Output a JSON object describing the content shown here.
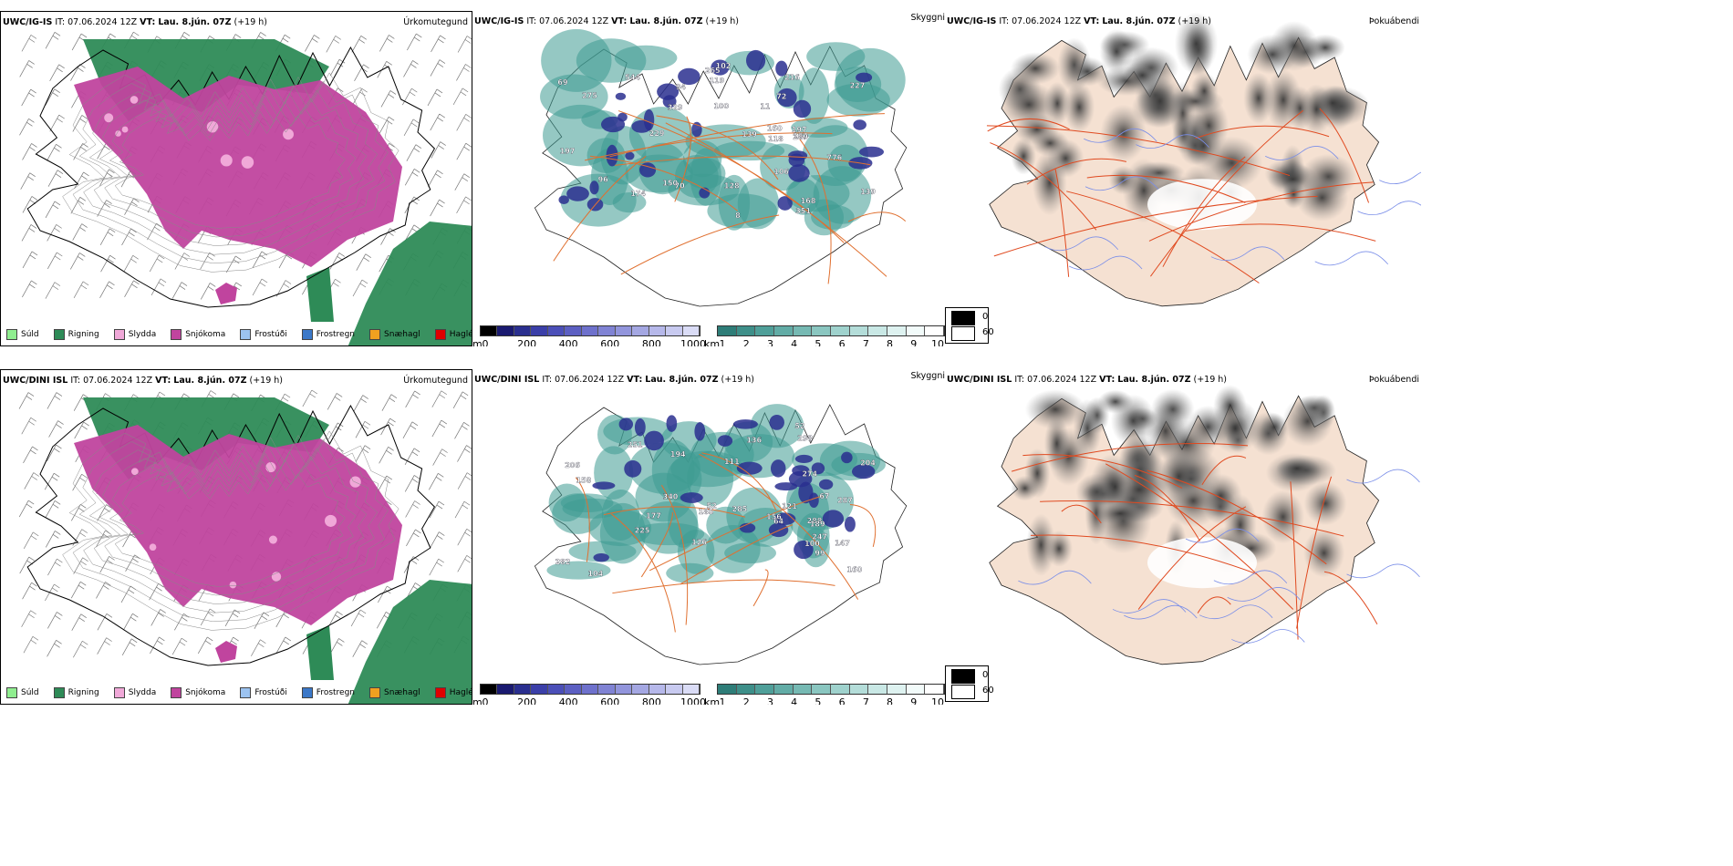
{
  "rows": [
    {
      "model": "UWC/IG-IS",
      "run": "IT: 07.06.2024 12Z",
      "vt_label": "VT:",
      "vt": "Lau. 8.jún. 07Z",
      "lead": "(+19 h)",
      "titles": [
        "Úrkomutegund",
        "Skyggni",
        "Þokuábendi"
      ]
    },
    {
      "model": "UWC/DINI ISL",
      "run": "IT: 07.06.2024 12Z",
      "vt_label": "VT:",
      "vt": "Lau. 8.jún. 07Z",
      "lead": "(+19 h)",
      "titles": [
        "Úrkomutegund",
        "Skyggni",
        "Þokuábendi"
      ]
    }
  ],
  "precip_legend": [
    {
      "label": "Súld",
      "color": "#90ee90"
    },
    {
      "label": "Rigning",
      "color": "#2e8b57"
    },
    {
      "label": "Slydda",
      "color": "#f0a8d8"
    },
    {
      "label": "Snjókoma",
      "color": "#c0449e"
    },
    {
      "label": "Frostúði",
      "color": "#9cc3f0"
    },
    {
      "label": "Frostregn",
      "color": "#3b78c8"
    },
    {
      "label": "Snæhagl",
      "color": "#f0a020"
    },
    {
      "label": "Haglél",
      "color": "#e00000"
    }
  ],
  "ceiling_bar": {
    "unit": "m",
    "ticks": [
      "0",
      "200",
      "400",
      "600",
      "800",
      "1000"
    ]
  },
  "visibility_bar": {
    "unit": "km",
    "ticks": [
      "1",
      "2",
      "3",
      "4",
      "5",
      "6",
      "7",
      "8",
      "9",
      "10"
    ]
  },
  "fog_legend": [
    "0",
    "60"
  ],
  "ceiling_labels_top": [
    "100",
    "168",
    "106",
    "544",
    "8",
    "96",
    "102",
    "72",
    "70",
    "160",
    "265",
    "216",
    "197",
    "174",
    "119",
    "139",
    "150",
    "69",
    "180",
    "275",
    "118",
    "351",
    "776",
    "289",
    "229",
    "227",
    "139",
    "197",
    "11",
    "128",
    "94",
    "329"
  ],
  "ceiling_labels_bottom": [
    "104",
    "99",
    "282",
    "251",
    "225",
    "204",
    "64",
    "52",
    "298",
    "288",
    "247",
    "100",
    "287",
    "285",
    "340",
    "177",
    "158",
    "189",
    "194",
    "121",
    "185",
    "126",
    "274",
    "156",
    "67",
    "136",
    "52",
    "147",
    "111",
    "206",
    "160"
  ],
  "colors": {
    "rain": "#2e8b57",
    "snow": "#c0449e",
    "sleet": "#f0a8d8",
    "drizzle": "#90ee90",
    "teal": "#3e9a92",
    "navy": "#2a2f8f",
    "road": "#e07030",
    "land": "#f5e1d2",
    "terrain": "#7a7a7a"
  }
}
